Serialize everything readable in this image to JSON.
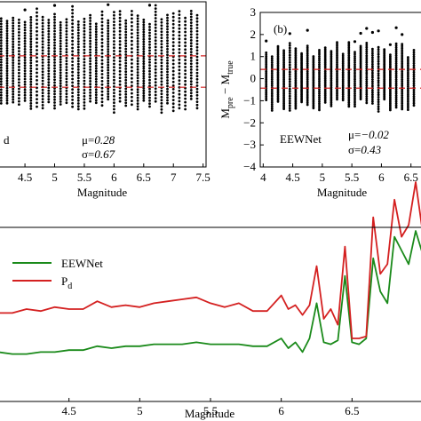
{
  "chart_data": [
    {
      "id": "panel-a",
      "type": "scatter",
      "xlabel": "Magnitude",
      "xticks": [
        "4.5",
        "5",
        "5.5",
        "6",
        "6.5",
        "7",
        "7.5"
      ],
      "xlim": [
        4.05,
        7.55
      ],
      "ylim": [
        -4,
        3
      ],
      "legend_fragment": "d",
      "stats": {
        "mu_label": "μ=",
        "mu": "0.28",
        "sigma_label": "σ=",
        "sigma": "0.67"
      },
      "ref_lines": [
        0.71,
        -0.62
      ],
      "range_by_magnitude": {
        "lo": -1.4,
        "hi": 2.45
      }
    },
    {
      "id": "panel-b",
      "type": "scatter",
      "panel_label": "(b)",
      "xlabel": "Magnitude",
      "ylabel_main": "M",
      "ylabel_sub_pre": "pre",
      "ylabel_minus": " − M",
      "ylabel_sub_true": "true",
      "xticks": [
        "4",
        "4.5",
        "5",
        "5.5",
        "6",
        "6.5"
      ],
      "yticks": [
        "3",
        "2",
        "1",
        "0",
        "−1",
        "−2",
        "−3",
        "−4"
      ],
      "xlim": [
        3.95,
        6.7
      ],
      "ylim": [
        -4,
        3
      ],
      "legend_label": "EEWNet",
      "stats": {
        "mu_label": "μ=",
        "mu": "−0.02",
        "sigma_label": "σ=",
        "sigma": "0.43"
      },
      "ref_lines": [
        0.42,
        -0.43
      ],
      "range_by_magnitude": {
        "lo": -1.2,
        "hi": 1.3
      }
    },
    {
      "id": "panel-c",
      "type": "line",
      "xlabel": "Magnitude",
      "xticks": [
        "4.5",
        "5",
        "5.5",
        "6",
        "6.5"
      ],
      "xlim": [
        4.0,
        7.0
      ],
      "ylim": [
        0,
        1
      ],
      "legend": [
        {
          "name": "EEWNet",
          "color": "#1a8a1a"
        },
        {
          "name": "P",
          "sub": "d",
          "color": "#d42020"
        }
      ],
      "x": [
        4.0,
        4.1,
        4.2,
        4.3,
        4.4,
        4.5,
        4.6,
        4.7,
        4.8,
        4.9,
        5.0,
        5.1,
        5.2,
        5.3,
        5.4,
        5.5,
        5.6,
        5.7,
        5.8,
        5.9,
        6.0,
        6.05,
        6.1,
        6.15,
        6.2,
        6.25,
        6.3,
        6.35,
        6.4,
        6.45,
        6.5,
        6.55,
        6.6,
        6.65,
        6.7,
        6.75,
        6.8,
        6.85,
        6.9,
        6.95,
        7.0
      ],
      "series": [
        {
          "name": "EEWNet",
          "color": "#1a8a1a",
          "values": [
            0.28,
            0.27,
            0.27,
            0.28,
            0.28,
            0.29,
            0.29,
            0.31,
            0.3,
            0.31,
            0.31,
            0.32,
            0.32,
            0.32,
            0.33,
            0.32,
            0.32,
            0.32,
            0.31,
            0.31,
            0.35,
            0.3,
            0.33,
            0.28,
            0.35,
            0.53,
            0.33,
            0.32,
            0.34,
            0.67,
            0.33,
            0.32,
            0.35,
            0.76,
            0.59,
            0.53,
            0.87,
            0.8,
            0.73,
            0.9,
            0.78
          ]
        },
        {
          "name": "P",
          "sub": "d",
          "color": "#d42020",
          "values": [
            0.48,
            0.48,
            0.5,
            0.49,
            0.51,
            0.5,
            0.5,
            0.54,
            0.51,
            0.52,
            0.51,
            0.53,
            0.54,
            0.55,
            0.56,
            0.53,
            0.51,
            0.53,
            0.49,
            0.49,
            0.57,
            0.5,
            0.52,
            0.47,
            0.52,
            0.72,
            0.45,
            0.5,
            0.42,
            0.82,
            0.35,
            0.35,
            0.36,
            0.97,
            0.68,
            0.73,
            1.06,
            0.87,
            0.93,
            1.15,
            0.89
          ]
        }
      ]
    }
  ]
}
